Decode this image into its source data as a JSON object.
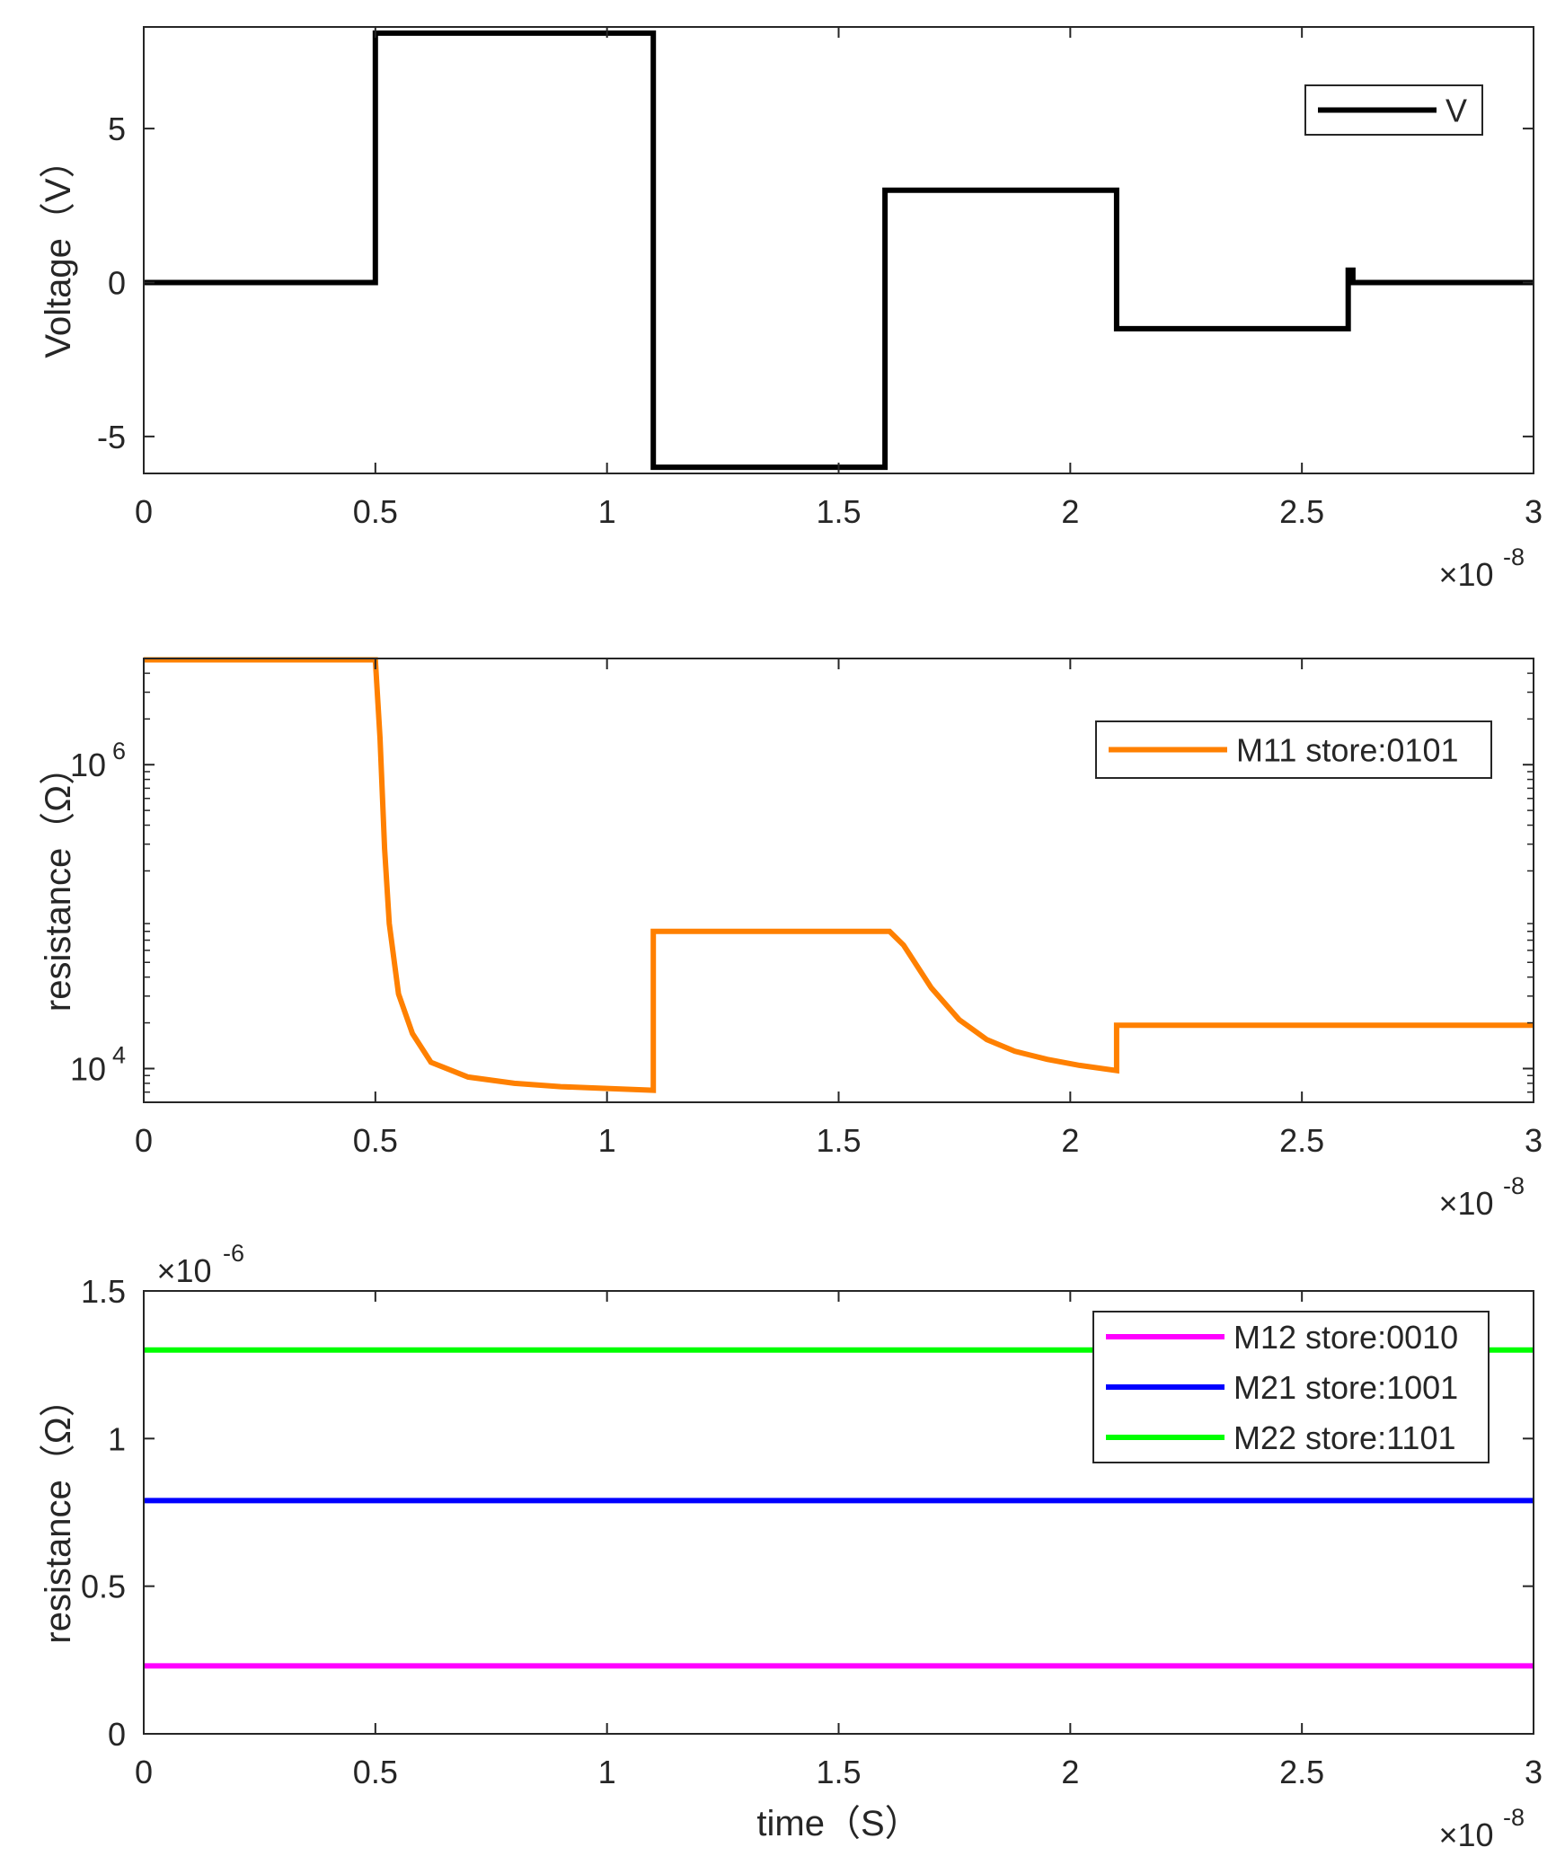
{
  "chart_data": [
    {
      "type": "line",
      "title": "",
      "xlabel": "",
      "ylabel": "Voltage（V）",
      "xlim": [
        0,
        3e-08
      ],
      "ylim": [
        -6.2,
        8.3
      ],
      "yscale": "linear",
      "x_exponent_label": "×10",
      "x_exponent": "-8",
      "x_ticks": [
        0,
        5e-09,
        1e-08,
        1.5e-08,
        2e-08,
        2.5e-08,
        3e-08
      ],
      "x_tick_labels": [
        "0",
        "0.5",
        "1",
        "1.5",
        "2",
        "2.5",
        "3"
      ],
      "y_ticks": [
        -5,
        0,
        5
      ],
      "y_tick_labels": [
        "-5",
        "0",
        "5"
      ],
      "legend_position": "top-right",
      "series": [
        {
          "name": "V",
          "color": "#000000",
          "x": [
            0,
            5e-09,
            5e-09,
            1.1e-08,
            1.1e-08,
            1.6e-08,
            1.6e-08,
            2.1e-08,
            2.1e-08,
            2.6e-08,
            2.6e-08,
            2.61e-08,
            2.61e-08,
            3e-08
          ],
          "y": [
            0,
            0,
            8.1,
            8.1,
            -6,
            -6,
            3,
            3,
            -1.5,
            -1.5,
            0.4,
            0.4,
            0,
            0
          ]
        }
      ]
    },
    {
      "type": "line",
      "title": "",
      "xlabel": "",
      "ylabel": "resistance（Ω）",
      "xlim": [
        0,
        3e-08
      ],
      "ylim": [
        6000,
        5000000
      ],
      "yscale": "log",
      "x_exponent_label": "×10",
      "x_exponent": "-8",
      "x_ticks": [
        0,
        5e-09,
        1e-08,
        1.5e-08,
        2e-08,
        2.5e-08,
        3e-08
      ],
      "x_tick_labels": [
        "0",
        "0.5",
        "1",
        "1.5",
        "2",
        "2.5",
        "3"
      ],
      "y_ticks": [
        10000,
        1000000
      ],
      "y_tick_labels": [
        {
          "base": "10",
          "exp": "4"
        },
        {
          "base": "10",
          "exp": "6"
        }
      ],
      "legend_position": "top-right",
      "series": [
        {
          "name": "M11 store:0101",
          "color": "#FF8000",
          "x": [
            0,
            5e-09,
            5.1e-09,
            5.2e-09,
            5.3e-09,
            5.5e-09,
            5.8e-09,
            6.2e-09,
            7e-09,
            8e-09,
            9e-09,
            1e-08,
            1.1e-08,
            1.1e-08,
            1.5e-08,
            1.61e-08,
            1.64e-08,
            1.7e-08,
            1.76e-08,
            1.82e-08,
            1.88e-08,
            1.95e-08,
            2.02e-08,
            2.1e-08,
            2.1e-08,
            3e-08
          ],
          "y": [
            4900000.0,
            4900000.0,
            1500000.0,
            280000.0,
            90000.0,
            31000.0,
            17000.0,
            11000.0,
            8800.0,
            8000.0,
            7600.0,
            7400.0,
            7200.0,
            80000.0,
            80000.0,
            80000.0,
            65000.0,
            34000.0,
            21000.0,
            15500.0,
            13000.0,
            11500.0,
            10500.0,
            9700.0,
            19300.0,
            19300.0
          ]
        }
      ]
    },
    {
      "type": "line",
      "title": "",
      "xlabel": "time（S）",
      "ylabel": "resistance（Ω）",
      "xlim": [
        0,
        3e-08
      ],
      "ylim": [
        0,
        1.5e-06
      ],
      "yscale": "linear",
      "x_exponent_label": "×10",
      "x_exponent": "-8",
      "y_exponent_label": "×10",
      "y_exponent": "-6",
      "x_ticks": [
        0,
        5e-09,
        1e-08,
        1.5e-08,
        2e-08,
        2.5e-08,
        3e-08
      ],
      "x_tick_labels": [
        "0",
        "0.5",
        "1",
        "1.5",
        "2",
        "2.5",
        "3"
      ],
      "y_ticks": [
        0,
        5e-07,
        1e-06,
        1.5e-06
      ],
      "y_tick_labels": [
        "0",
        "0.5",
        "1",
        "1.5"
      ],
      "legend_position": "top-right",
      "series": [
        {
          "name": "M12 store:0010",
          "color": "#FF00FF",
          "x": [
            0,
            3e-08
          ],
          "y": [
            2.3e-07,
            2.3e-07
          ]
        },
        {
          "name": "M21 store:1001",
          "color": "#0000FF",
          "x": [
            0,
            3e-08
          ],
          "y": [
            7.9e-07,
            7.9e-07
          ]
        },
        {
          "name": "M22 store:1101",
          "color": "#00FF00",
          "x": [
            0,
            3e-08
          ],
          "y": [
            1.3e-06,
            1.3e-06
          ]
        }
      ]
    }
  ]
}
